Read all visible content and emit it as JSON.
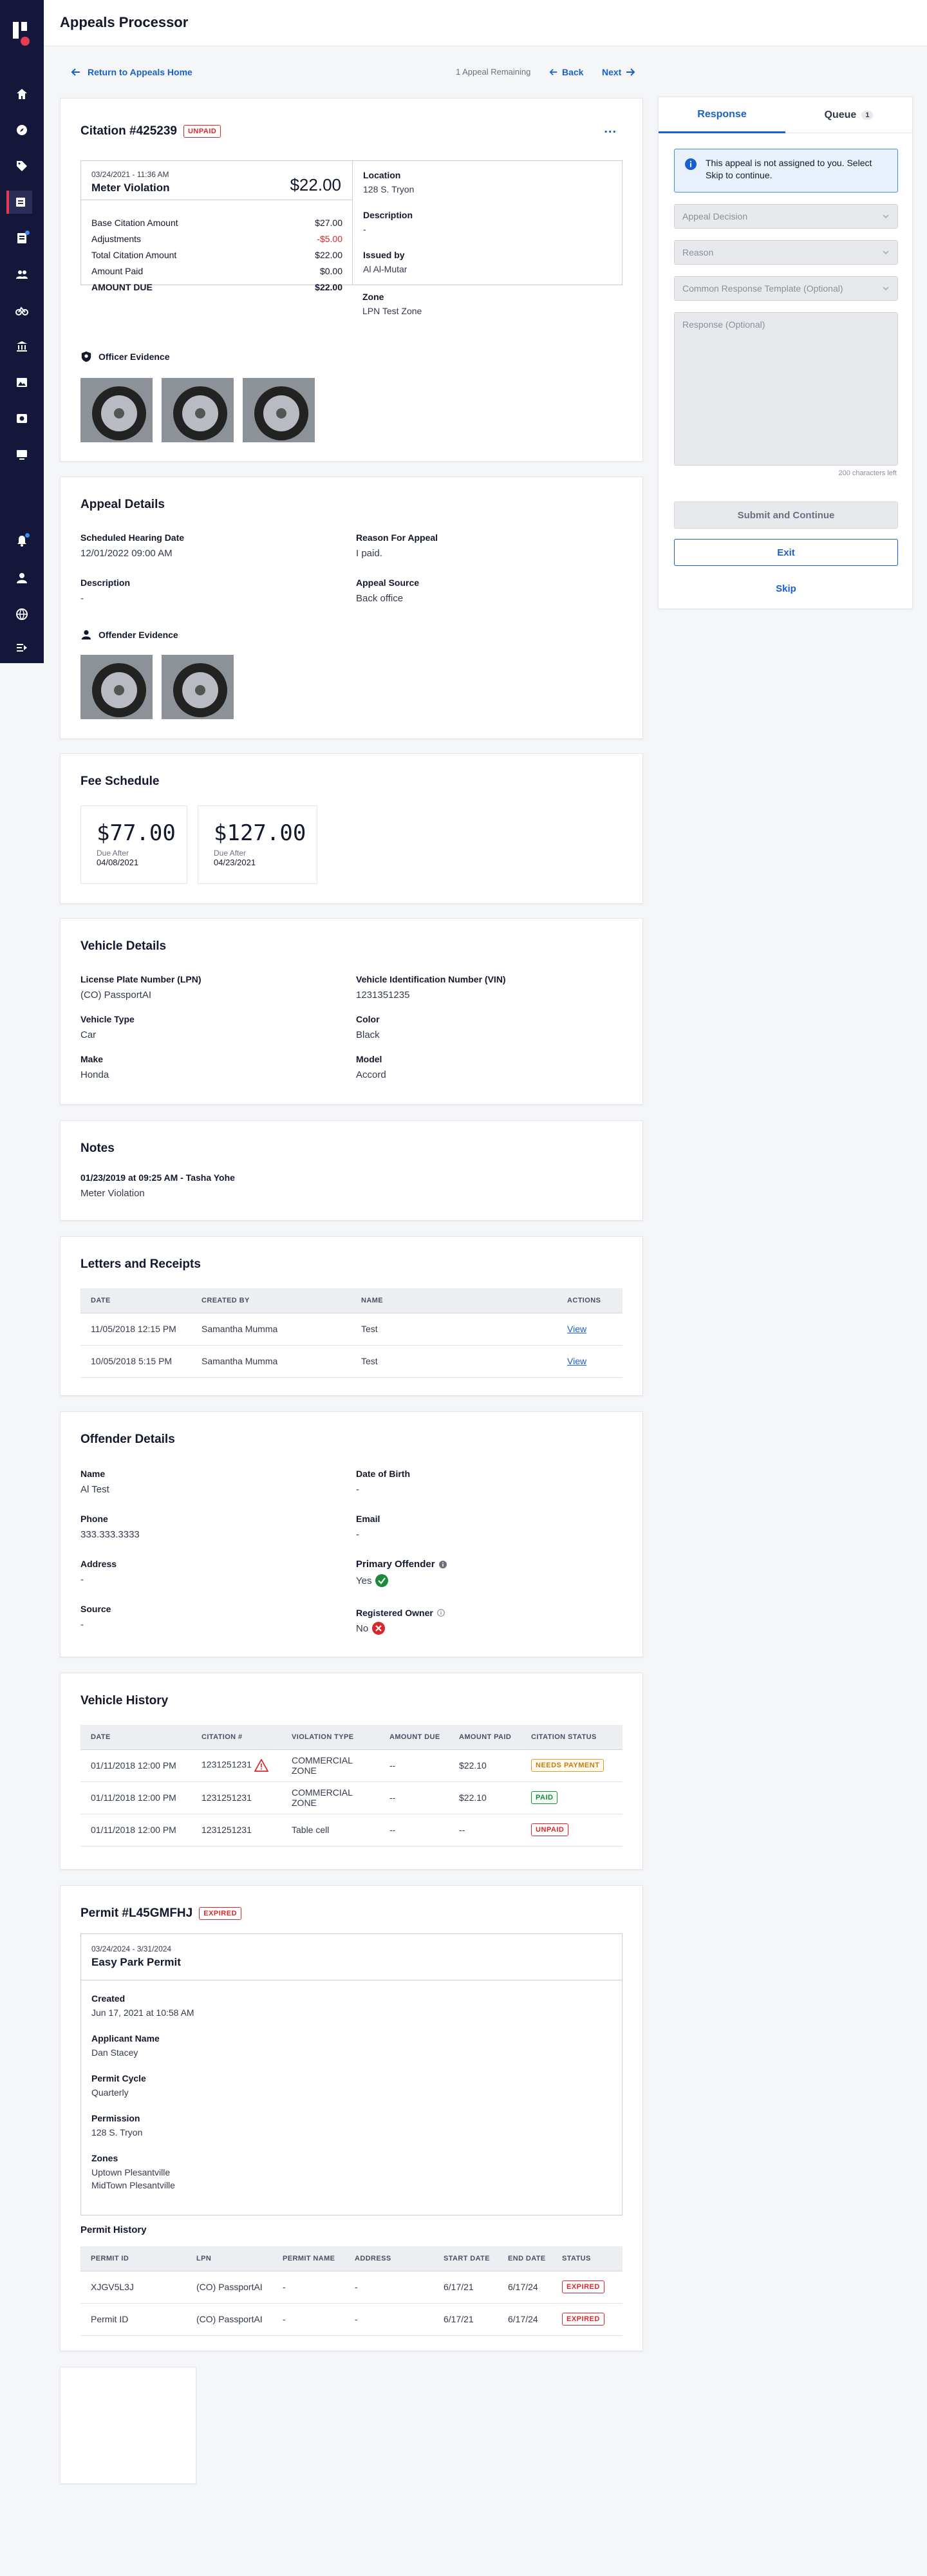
{
  "app": {
    "title": "Appeals Processor"
  },
  "nav": {
    "return": "Return to Appeals Home",
    "remaining": "1 Appeal Remaining",
    "back": "Back",
    "next": "Next"
  },
  "citation": {
    "title": "Citation #425239",
    "status": "UNPAID",
    "menu": "...",
    "datetime": "03/24/2021 - 11:36 AM",
    "violation": "Meter Violation",
    "amount": "$22.00",
    "rows": [
      {
        "label": "Base Citation Amount",
        "value": "$27.00"
      },
      {
        "label": "Adjustments",
        "value": "-$5.00"
      },
      {
        "label": "Total Citation Amount",
        "value": "$22.00"
      },
      {
        "label": "Amount Paid",
        "value": "$0.00"
      },
      {
        "label": "AMOUNT DUE",
        "value": "$22.00"
      }
    ],
    "location_label": "Location",
    "location": "128 S. Tryon",
    "description_label": "Description",
    "description": "-",
    "issued_label": "Issued by",
    "issued": "Al Al-Mutar",
    "zone_label": "Zone",
    "zone": "LPN Test Zone",
    "evidence": "Officer Evidence"
  },
  "appeal": {
    "title": "Appeal Details",
    "hearing_label": "Scheduled Hearing Date",
    "hearing": "12/01/2022 09:00 AM",
    "reason_label": "Reason For Appeal",
    "reason": "I paid.",
    "description_label": "Description",
    "description": "-",
    "source_label": "Appeal Source",
    "source": "Back office",
    "evidence": "Offender Evidence"
  },
  "fees": {
    "title": "Fee Schedule",
    "items": [
      {
        "amount": "$77.00",
        "label": "Due After",
        "date": "04/08/2021"
      },
      {
        "amount": "$127.00",
        "label": "Due After",
        "date": "04/23/2021"
      }
    ]
  },
  "vehicle": {
    "title": "Vehicle Details",
    "lpn_label": "License Plate Number (LPN)",
    "lpn": "(CO) PassportAI",
    "vin_label": "Vehicle Identification Number (VIN)",
    "vin": "1231351235",
    "type_label": "Vehicle Type",
    "type": "Car",
    "color_label": "Color",
    "color": "Black",
    "make_label": "Make",
    "make": "Honda",
    "model_label": "Model",
    "model": "Accord"
  },
  "notes": {
    "title": "Notes",
    "header": "01/23/2019 at 09:25 AM - Tasha Yohe",
    "text": "Meter Violation"
  },
  "letters": {
    "title": "Letters and Receipts",
    "cols": [
      "DATE",
      "CREATED BY",
      "NAME",
      "ACTIONS"
    ],
    "rows": [
      {
        "date": "11/05/2018  12:15 PM",
        "by": "Samantha Mumma",
        "name": "Test",
        "action": "View"
      },
      {
        "date": "10/05/2018  5:15 PM",
        "by": "Samantha Mumma",
        "name": "Test",
        "action": "View"
      }
    ]
  },
  "offender": {
    "title": "Offender Details",
    "name_label": "Name",
    "name": "Al Test",
    "dob_label": "Date of Birth",
    "dob": "-",
    "phone_label": "Phone",
    "phone": "333.333.3333",
    "email_label": "Email",
    "email": "-",
    "address_label": "Address",
    "address": "-",
    "primary_label": "Primary Offender",
    "primary": "Yes",
    "source_label": "Source",
    "source": "-",
    "owner_label": "Registered Owner",
    "owner": "No"
  },
  "history": {
    "title": "Vehicle History",
    "cols": [
      "DATE",
      "CITATION #",
      "VIOLATION TYPE",
      "AMOUNT DUE",
      "AMOUNT PAID",
      "CITATION STATUS"
    ],
    "rows": [
      {
        "date": "01/11/2018 12:00 PM",
        "num": "1231251231",
        "type": "COMMERCIAL ZONE",
        "due": "--",
        "paid": "$22.10",
        "status": "NEEDS PAYMENT"
      },
      {
        "date": "01/11/2018 12:00 PM",
        "num": "1231251231",
        "type": "COMMERCIAL ZONE",
        "due": "--",
        "paid": "$22.10",
        "status": "PAID"
      },
      {
        "date": "01/11/2018 12:00 PM",
        "num": "1231251231",
        "type": "Table cell",
        "due": "--",
        "paid": "--",
        "status": "UNPAID"
      }
    ]
  },
  "permit": {
    "title": "Permit #L45GMFHJ",
    "status": "EXPIRED",
    "dates": "03/24/2024 - 3/31/2024",
    "name": "Easy Park Permit",
    "created_label": "Created",
    "created": "Jun 17, 2021 at 10:58 AM",
    "applicant_label": "Applicant Name",
    "applicant": "Dan Stacey",
    "cycle_label": "Permit Cycle",
    "cycle": "Quarterly",
    "permission_label": "Permission",
    "permission": "128 S. Tryon",
    "zones_label": "Zones",
    "zone1": "Uptown Plesantville",
    "zone2": "MidTown Plesantville",
    "history_title": "Permit History",
    "cols": [
      "PERMIT ID",
      "LPN",
      "PERMIT NAME",
      "ADDRESS",
      "START DATE",
      "END DATE",
      "STATUS"
    ],
    "rows": [
      {
        "id": "XJGV5L3J",
        "lpn": "(CO) PassportAI",
        "name": "-",
        "addr": "-",
        "start": "6/17/21",
        "end": "6/17/24",
        "status": "EXPIRED"
      },
      {
        "id": "Permit ID",
        "lpn": "(CO) PassportAI",
        "name": "-",
        "addr": "-",
        "start": "6/17/21",
        "end": "6/17/24",
        "status": "EXPIRED"
      }
    ]
  },
  "panel": {
    "tab_response": "Response",
    "tab_queue": "Queue",
    "queue_count": "1",
    "notice": "This appeal is not assigned to you. Select Skip to continue.",
    "decision": "Appeal Decision",
    "reason": "Reason",
    "template": "Common Response Template (Optional)",
    "response": "Response (Optional)",
    "chars": "200 characters left",
    "submit": "Submit and Continue",
    "exit": "Exit",
    "skip": "Skip"
  }
}
